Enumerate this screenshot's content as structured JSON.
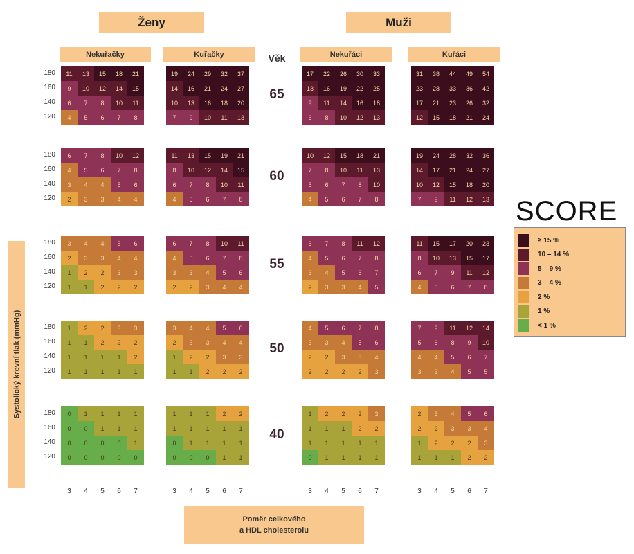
{
  "headers": {
    "women": "Ženy",
    "men": "Muži",
    "women_nonsmokers": "Nekuřačky",
    "women_smokers": "Kuřačky",
    "men_nonsmokers": "Nekuřáci",
    "men_smokers": "Kuřáci",
    "age_title": "Věk"
  },
  "axis": {
    "y_label": "Systolický krevní tlak (mmHg)",
    "x_label_line1": "Poměr celkového",
    "x_label_line2": "a HDL cholesterolu",
    "x_ticks": [
      "3",
      "4",
      "5",
      "6",
      "7"
    ],
    "y_ticks": [
      "180",
      "160",
      "140",
      "120"
    ]
  },
  "legend": {
    "title": "SCORE",
    "items": [
      {
        "label": "≥ 15 %",
        "color": "#3b0d1d"
      },
      {
        "label": "10 – 14 %",
        "color": "#5c1a2c"
      },
      {
        "label": "5 – 9 %",
        "color": "#8e3356"
      },
      {
        "label": "3 – 4 %",
        "color": "#c57a37"
      },
      {
        "label": "2 %",
        "color": "#e7a240"
      },
      {
        "label": "1 %",
        "color": "#a9a43a"
      },
      {
        "label": "< 1 %",
        "color": "#67ad4a"
      }
    ]
  },
  "chart_data": {
    "type": "heatmap",
    "title": "SCORE",
    "xlabel": "Poměr celkového a HDL cholesterolu",
    "ylabel": "Systolický krevní tlak (mmHg)",
    "x": [
      3,
      4,
      5,
      6,
      7
    ],
    "y": [
      180,
      160,
      140,
      120
    ],
    "ages": [
      65,
      60,
      55,
      50,
      40
    ],
    "groups": [
      "Ženy – Nekuřačky",
      "Ženy – Kuřačky",
      "Muži – Nekuřáci",
      "Muži – Kuřáci"
    ],
    "values": {
      "65": [
        [
          [
            11,
            13,
            15,
            18,
            21
          ],
          [
            9,
            10,
            12,
            14,
            15
          ],
          [
            6,
            7,
            8,
            10,
            11
          ],
          [
            4,
            5,
            6,
            7,
            8
          ]
        ],
        [
          [
            19,
            24,
            29,
            32,
            37
          ],
          [
            14,
            16,
            21,
            24,
            27
          ],
          [
            10,
            13,
            16,
            18,
            20
          ],
          [
            7,
            9,
            10,
            11,
            13
          ]
        ],
        [
          [
            17,
            22,
            26,
            30,
            33
          ],
          [
            13,
            16,
            19,
            22,
            25
          ],
          [
            9,
            11,
            14,
            16,
            18
          ],
          [
            6,
            8,
            10,
            12,
            13
          ]
        ],
        [
          [
            31,
            38,
            44,
            49,
            54
          ],
          [
            23,
            28,
            33,
            36,
            42
          ],
          [
            17,
            21,
            23,
            26,
            32
          ],
          [
            12,
            15,
            18,
            21,
            24
          ]
        ]
      ],
      "60": [
        [
          [
            6,
            7,
            8,
            10,
            12
          ],
          [
            4,
            5,
            6,
            7,
            8
          ],
          [
            3,
            4,
            4,
            5,
            6
          ],
          [
            2,
            3,
            3,
            4,
            4
          ]
        ],
        [
          [
            11,
            13,
            15,
            19,
            21
          ],
          [
            8,
            10,
            12,
            14,
            15
          ],
          [
            6,
            7,
            8,
            10,
            11
          ],
          [
            4,
            5,
            6,
            7,
            8
          ]
        ],
        [
          [
            10,
            12,
            15,
            18,
            21
          ],
          [
            7,
            8,
            10,
            11,
            13
          ],
          [
            5,
            6,
            7,
            8,
            10
          ],
          [
            4,
            5,
            6,
            7,
            8
          ]
        ],
        [
          [
            19,
            24,
            28,
            32,
            36
          ],
          [
            14,
            17,
            21,
            24,
            27
          ],
          [
            10,
            12,
            15,
            18,
            20
          ],
          [
            7,
            9,
            11,
            12,
            13
          ]
        ]
      ],
      "55": [
        [
          [
            3,
            4,
            4,
            5,
            6
          ],
          [
            2,
            3,
            3,
            4,
            4
          ],
          [
            1,
            2,
            2,
            3,
            3
          ],
          [
            1,
            1,
            2,
            2,
            2
          ]
        ],
        [
          [
            6,
            7,
            8,
            10,
            11
          ],
          [
            4,
            5,
            6,
            7,
            8
          ],
          [
            3,
            3,
            4,
            5,
            6
          ],
          [
            2,
            2,
            3,
            4,
            4
          ]
        ],
        [
          [
            6,
            7,
            8,
            11,
            12
          ],
          [
            4,
            5,
            6,
            7,
            8
          ],
          [
            3,
            4,
            5,
            6,
            7
          ],
          [
            2,
            3,
            3,
            4,
            5
          ]
        ],
        [
          [
            11,
            15,
            17,
            20,
            23
          ],
          [
            8,
            10,
            13,
            15,
            17
          ],
          [
            6,
            7,
            9,
            11,
            12
          ],
          [
            4,
            5,
            6,
            7,
            8
          ]
        ]
      ],
      "50": [
        [
          [
            1,
            2,
            2,
            3,
            3
          ],
          [
            1,
            1,
            2,
            2,
            2
          ],
          [
            1,
            1,
            1,
            1,
            2
          ],
          [
            1,
            1,
            1,
            1,
            1
          ]
        ],
        [
          [
            3,
            4,
            4,
            5,
            6
          ],
          [
            2,
            3,
            3,
            4,
            4
          ],
          [
            1,
            2,
            2,
            3,
            3
          ],
          [
            1,
            1,
            2,
            2,
            2
          ]
        ],
        [
          [
            4,
            5,
            6,
            7,
            8
          ],
          [
            3,
            3,
            4,
            5,
            6
          ],
          [
            2,
            2,
            3,
            3,
            4
          ],
          [
            2,
            2,
            2,
            2,
            3
          ]
        ],
        [
          [
            7,
            9,
            11,
            12,
            14
          ],
          [
            5,
            6,
            8,
            9,
            10
          ],
          [
            4,
            4,
            5,
            6,
            7
          ],
          [
            3,
            3,
            4,
            5,
            5
          ]
        ]
      ],
      "40": [
        [
          [
            0,
            1,
            1,
            1,
            1
          ],
          [
            0,
            0,
            1,
            1,
            1
          ],
          [
            0,
            0,
            0,
            0,
            1
          ],
          [
            0,
            0,
            0,
            0,
            0
          ]
        ],
        [
          [
            1,
            1,
            1,
            2,
            2
          ],
          [
            1,
            1,
            1,
            1,
            1
          ],
          [
            0,
            1,
            1,
            1,
            1
          ],
          [
            0,
            0,
            0,
            1,
            1
          ]
        ],
        [
          [
            1,
            2,
            2,
            2,
            3
          ],
          [
            1,
            1,
            1,
            2,
            2
          ],
          [
            1,
            1,
            1,
            1,
            1
          ],
          [
            0,
            1,
            1,
            1,
            1
          ]
        ],
        [
          [
            2,
            3,
            4,
            5,
            6
          ],
          [
            2,
            2,
            3,
            3,
            4
          ],
          [
            1,
            2,
            2,
            2,
            3
          ],
          [
            1,
            1,
            1,
            2,
            2
          ]
        ]
      ]
    }
  }
}
